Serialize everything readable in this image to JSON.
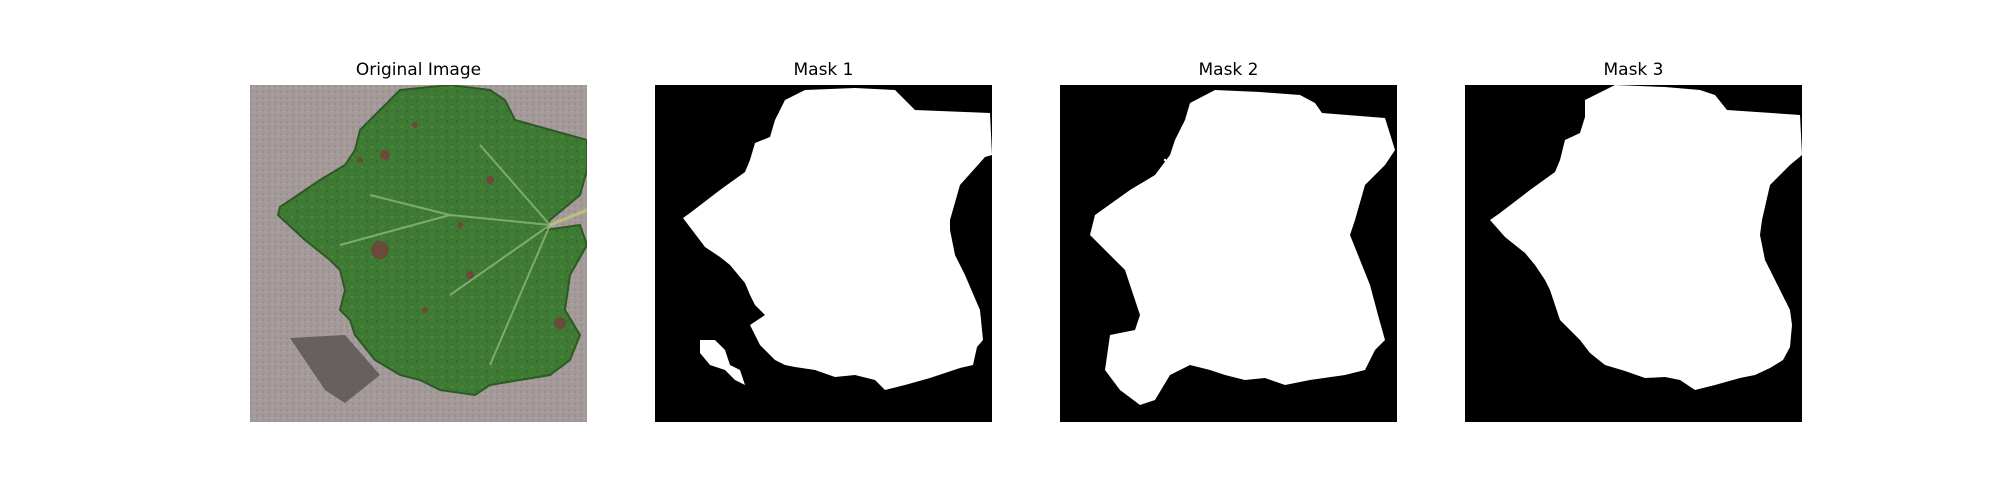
{
  "panels": [
    {
      "title": "Original Image"
    },
    {
      "title": "Mask 1"
    },
    {
      "title": "Mask 2"
    },
    {
      "title": "Mask 3"
    }
  ],
  "colors": {
    "background": "#ffffff",
    "mask_bg": "#000000",
    "mask_fg": "#ffffff",
    "leaf": "#3f7a34",
    "leaf_dark": "#2c5a25",
    "ground": "#a59a9a",
    "shadow": "#5b5656",
    "spot": "#6b4a3a"
  }
}
